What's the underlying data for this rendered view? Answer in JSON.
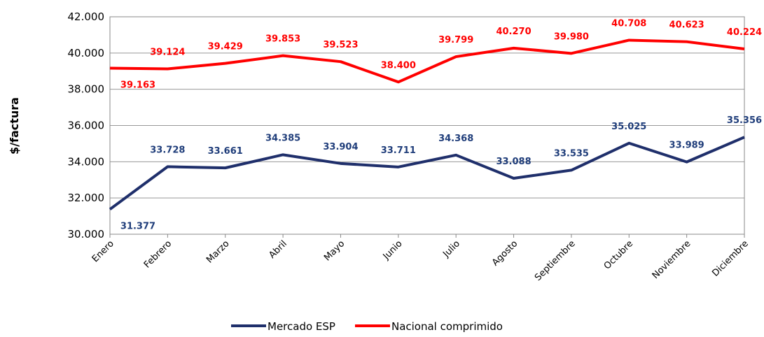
{
  "chart_data": {
    "type": "line",
    "y_label": "$/factura",
    "categories": [
      "Enero",
      "Febrero",
      "Marzo",
      "Abril",
      "Mayo",
      "Junio",
      "Julio",
      "Agosto",
      "Septiembre",
      "Octubre",
      "Noviembre",
      "Diciembre"
    ],
    "series": [
      {
        "name": "Mercado ESP",
        "color": "#1f2f6b",
        "label_color": "#1f3d7a",
        "values": [
          31377,
          33728,
          33661,
          34385,
          33904,
          33711,
          34368,
          33088,
          33535,
          35025,
          33989,
          35356
        ],
        "value_labels": [
          "31.377",
          "33.728",
          "33.661",
          "34.385",
          "33.904",
          "33.711",
          "34.368",
          "33.088",
          "33.535",
          "35.025",
          "33.989",
          "35.356"
        ]
      },
      {
        "name": "Nacional comprimido",
        "color": "#ff0000",
        "label_color": "#ff0000",
        "values": [
          39163,
          39124,
          39429,
          39853,
          39523,
          38400,
          39799,
          40270,
          39980,
          40708,
          40623,
          40224
        ],
        "value_labels": [
          "39.163",
          "39.124",
          "39.429",
          "39.853",
          "39.523",
          "38.400",
          "39.799",
          "40.270",
          "39.980",
          "40.708",
          "40.623",
          "40.224"
        ]
      }
    ],
    "ylim": [
      30000,
      42000
    ],
    "yticks": [
      {
        "value": 30000,
        "label": "30.000"
      },
      {
        "value": 32000,
        "label": "32.000"
      },
      {
        "value": 34000,
        "label": "34.000"
      },
      {
        "value": 36000,
        "label": "36.000"
      },
      {
        "value": 38000,
        "label": "38.000"
      },
      {
        "value": 40000,
        "label": "40.000"
      },
      {
        "value": 42000,
        "label": "42.000"
      }
    ],
    "grid": true,
    "legend": "bottom"
  }
}
